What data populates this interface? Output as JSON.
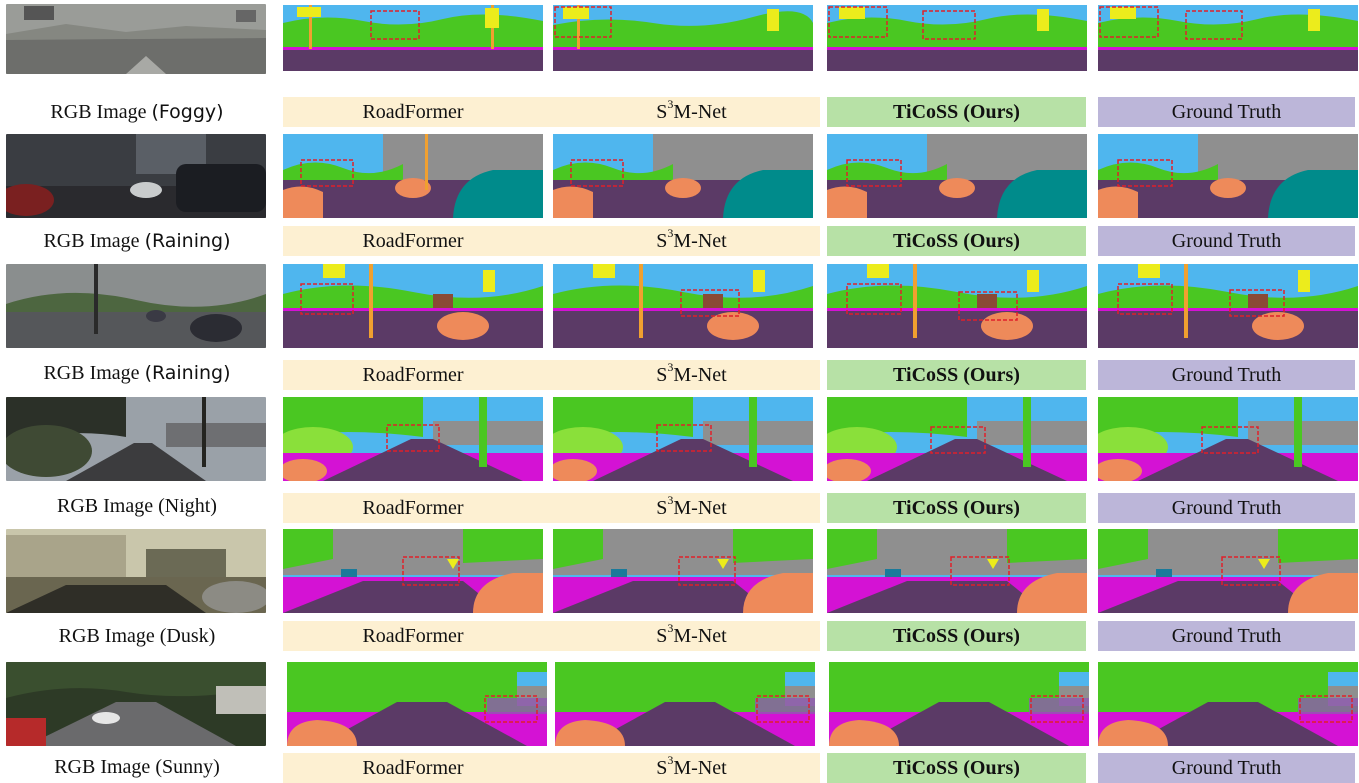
{
  "labels": {
    "roadformer": "RoadFormer",
    "s3m_base": "S",
    "s3m_sup": "3",
    "s3m_rest": "M-Net",
    "ticoss": "TiCoSS (Ours)",
    "ground_truth": "Ground Truth",
    "rgb_prefix": "RGB Image "
  },
  "rows": [
    {
      "condition": "(Foggy)"
    },
    {
      "condition": "(Raining)"
    },
    {
      "condition": "(Raining)"
    },
    {
      "condition": "(Night)"
    },
    {
      "condition": "(Dusk)"
    },
    {
      "condition": "(Sunny)"
    }
  ],
  "colors": {
    "sky": "#4fb6ee",
    "vegetation": "#4ac722",
    "terrain": "#8ae03a",
    "road": "#5b3a66",
    "sidewalk": "#d412d4",
    "building": "#8f8f8f",
    "car": "#ee8a5a",
    "truck": "#008b8b",
    "pole": "#f0a030",
    "sign": "#ecec1c",
    "highlight_box": "#e0202a",
    "band_baseline": "#fdf0d2",
    "band_ours": "#b7e1a6",
    "band_gt": "#bcb6d9"
  }
}
